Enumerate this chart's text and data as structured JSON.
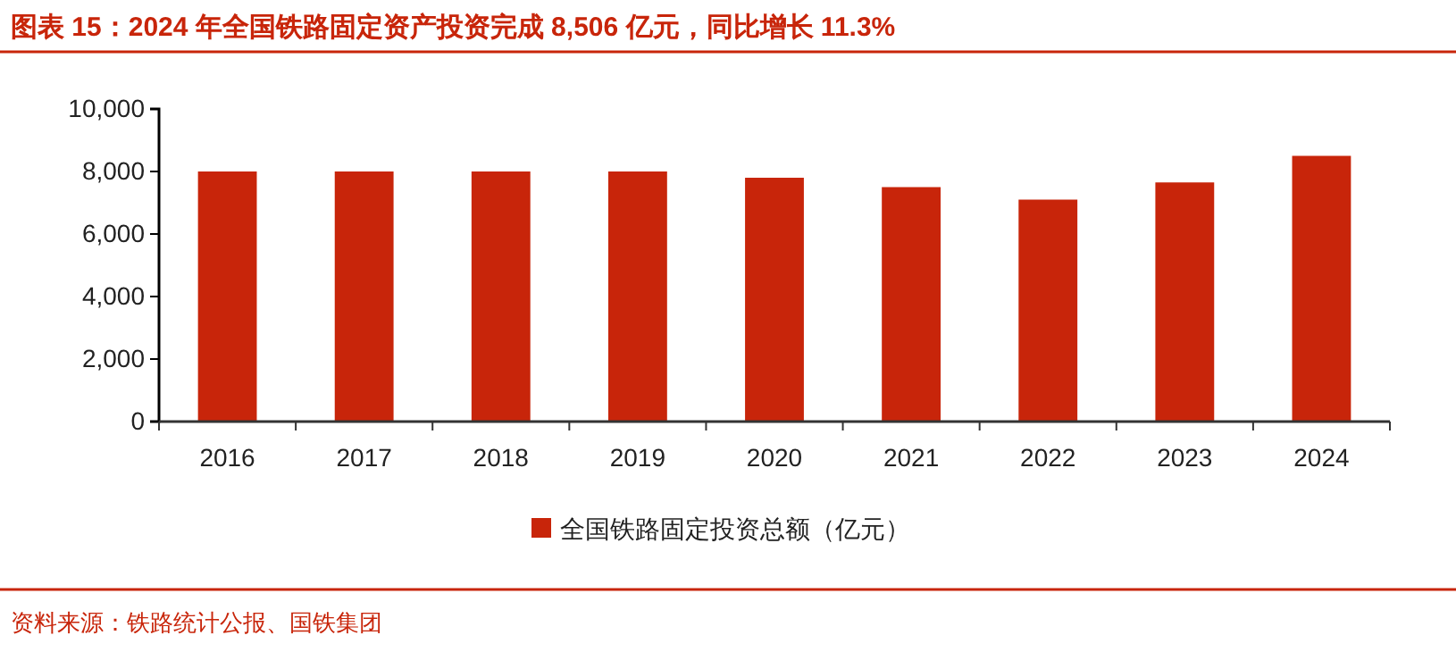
{
  "chart_data": {
    "type": "bar",
    "title": "图表 15：2024 年全国铁路固定资产投资完成 8,506 亿元，同比增长 11.3%",
    "categories": [
      "2016",
      "2017",
      "2018",
      "2019",
      "2020",
      "2021",
      "2022",
      "2023",
      "2024"
    ],
    "series": [
      {
        "name": "全国铁路固定投资总额（亿元）",
        "color": "#c8250a",
        "values": [
          8000,
          8000,
          8000,
          8000,
          7800,
          7500,
          7100,
          7650,
          8500
        ]
      }
    ],
    "ylim": [
      0,
      10000
    ],
    "yticks": [
      {
        "value": 0,
        "label": "0"
      },
      {
        "value": 2000,
        "label": "2,000"
      },
      {
        "value": 4000,
        "label": "4,000"
      },
      {
        "value": 6000,
        "label": "6,000"
      },
      {
        "value": 8000,
        "label": "8,000"
      },
      {
        "value": 10000,
        "label": "10,000"
      }
    ],
    "grid": false,
    "legend": "bottom",
    "annotations": [
      "资料来源：铁路统计公报、国铁集团"
    ]
  }
}
